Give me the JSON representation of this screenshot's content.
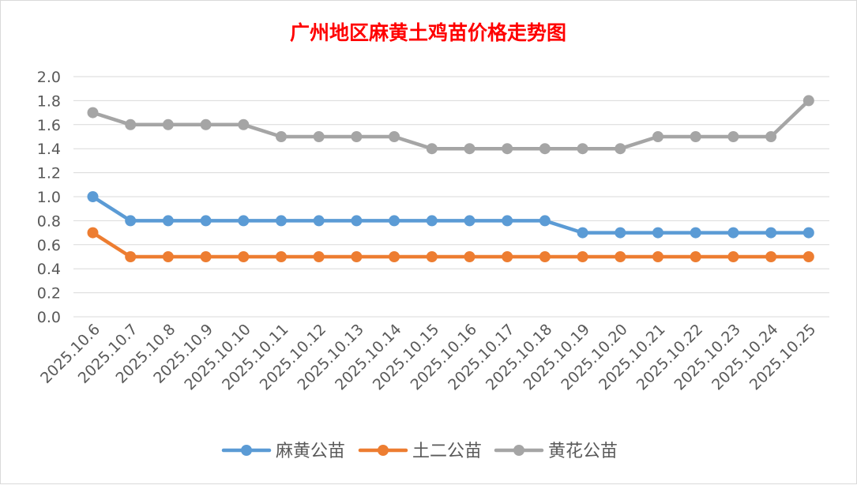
{
  "chart_data": {
    "type": "line",
    "title": "广州地区麻黄土鸡苗价格走势图",
    "xlabel": "",
    "ylabel": "",
    "ylim": [
      0,
      2.0
    ],
    "yticks": [
      "0.0",
      "0.2",
      "0.4",
      "0.6",
      "0.8",
      "1.0",
      "1.2",
      "1.4",
      "1.6",
      "1.8",
      "2.0"
    ],
    "grid": true,
    "legend_position": "bottom",
    "categories": [
      "2025.10.6",
      "2025.10.7",
      "2025.10.8",
      "2025.10.9",
      "2025.10.10",
      "2025.10.11",
      "2025.10.12",
      "2025.10.13",
      "2025.10.14",
      "2025.10.15",
      "2025.10.16",
      "2025.10.17",
      "2025.10.18",
      "2025.10.19",
      "2025.10.20",
      "2025.10.21",
      "2025.10.22",
      "2025.10.23",
      "2025.10.24",
      "2025.10.25"
    ],
    "series": [
      {
        "name": "麻黄公苗",
        "color": "#5B9BD5",
        "values": [
          1.0,
          0.8,
          0.8,
          0.8,
          0.8,
          0.8,
          0.8,
          0.8,
          0.8,
          0.8,
          0.8,
          0.8,
          0.8,
          0.7,
          0.7,
          0.7,
          0.7,
          0.7,
          0.7,
          0.7
        ]
      },
      {
        "name": "土二公苗",
        "color": "#ED7D31",
        "values": [
          0.7,
          0.5,
          0.5,
          0.5,
          0.5,
          0.5,
          0.5,
          0.5,
          0.5,
          0.5,
          0.5,
          0.5,
          0.5,
          0.5,
          0.5,
          0.5,
          0.5,
          0.5,
          0.5,
          0.5
        ]
      },
      {
        "name": "黄花公苗",
        "color": "#A5A5A5",
        "values": [
          1.7,
          1.6,
          1.6,
          1.6,
          1.6,
          1.5,
          1.5,
          1.5,
          1.5,
          1.4,
          1.4,
          1.4,
          1.4,
          1.4,
          1.4,
          1.5,
          1.5,
          1.5,
          1.5,
          1.8
        ]
      }
    ],
    "colors": {
      "title": "#FF0000",
      "axis_text": "#595959",
      "grid": "#D9D9D9"
    }
  }
}
